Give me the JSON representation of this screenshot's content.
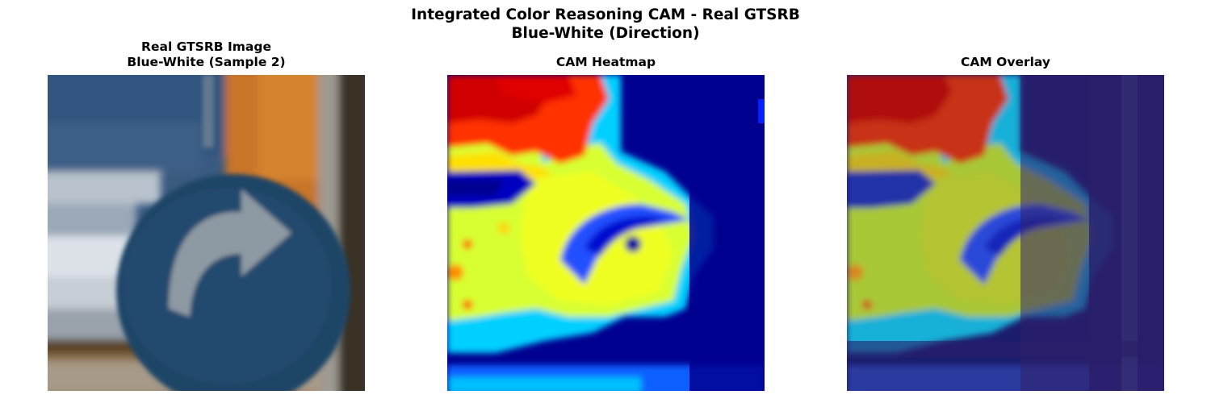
{
  "figure": {
    "title_line1": "Integrated Color Reasoning CAM - Real GTSRB",
    "title_line2": "Blue-White (Direction)"
  },
  "panels": [
    {
      "title_line1": "Real GTSRB Image",
      "title_line2": "Blue-White (Sample 2)",
      "content": "photo of round blue direction sign with white right-turn arrow"
    },
    {
      "title_line1": "CAM Heatmap",
      "title_line2": "",
      "colormap": "jet"
    },
    {
      "title_line1": "CAM Overlay",
      "title_line2": "",
      "colormap": "jet"
    }
  ],
  "colors": {
    "sign_blue": "#1f4466",
    "background_orange": "#c8742a",
    "jet_low": "#00008f",
    "jet_high": "#e00000"
  }
}
